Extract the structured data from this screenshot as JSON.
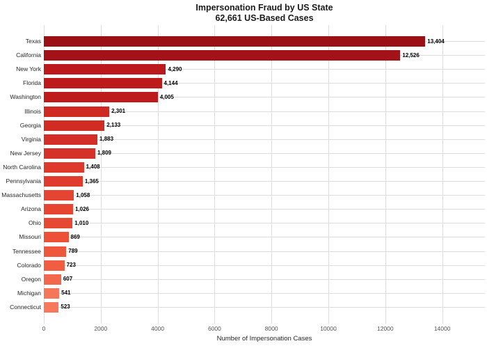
{
  "title": {
    "line1": "Impersonation Fraud by US State",
    "line2": "62,661 US-Based Cases"
  },
  "chart_data": {
    "type": "bar",
    "orientation": "horizontal",
    "title": "Impersonation Fraud by US State",
    "subtitle": "62,661 US-Based Cases",
    "xlabel": "Number of Impersonation Cases",
    "categories": [
      "Texas",
      "California",
      "New York",
      "Florida",
      "Washington",
      "Illinois",
      "Georgia",
      "Virginia",
      "New Jersey",
      "North Carolina",
      "Pennsylvania",
      "Massachusetts",
      "Arizona",
      "Ohio",
      "Missouri",
      "Tennessee",
      "Colorado",
      "Oregon",
      "Michigan",
      "Connecticut"
    ],
    "values": [
      13404,
      12526,
      4290,
      4144,
      4005,
      2301,
      2133,
      1883,
      1809,
      1408,
      1365,
      1058,
      1026,
      1010,
      869,
      789,
      723,
      607,
      541,
      523
    ],
    "value_labels": [
      "13,404",
      "12,526",
      "4,290",
      "4,144",
      "4,005",
      "2,301",
      "2,133",
      "1,883",
      "1,809",
      "1,408",
      "1,365",
      "1,058",
      "1,026",
      "1,010",
      "869",
      "789",
      "723",
      "607",
      "541",
      "523"
    ],
    "bar_colors": [
      "#9B1014",
      "#A31218",
      "#BB191B",
      "#BC1A1B",
      "#BE1C1C",
      "#CE2A23",
      "#D02C24",
      "#D32F26",
      "#D43128",
      "#DE3A2C",
      "#DF3C2D",
      "#E54430",
      "#E64631",
      "#E74833",
      "#EC5138",
      "#EF573C",
      "#F15D41",
      "#F3684C",
      "#F67659",
      "#F7785B"
    ],
    "x_ticks": [
      "0",
      "2000",
      "4000",
      "6000",
      "8000",
      "10000",
      "12000",
      "14000"
    ],
    "x_tick_values": [
      0,
      2000,
      4000,
      6000,
      8000,
      10000,
      12000,
      14000
    ],
    "xlim": [
      0,
      15500
    ],
    "grid": true,
    "gridline_color": "#dcdcdc",
    "background": "#ffffff",
    "legend": "none"
  }
}
